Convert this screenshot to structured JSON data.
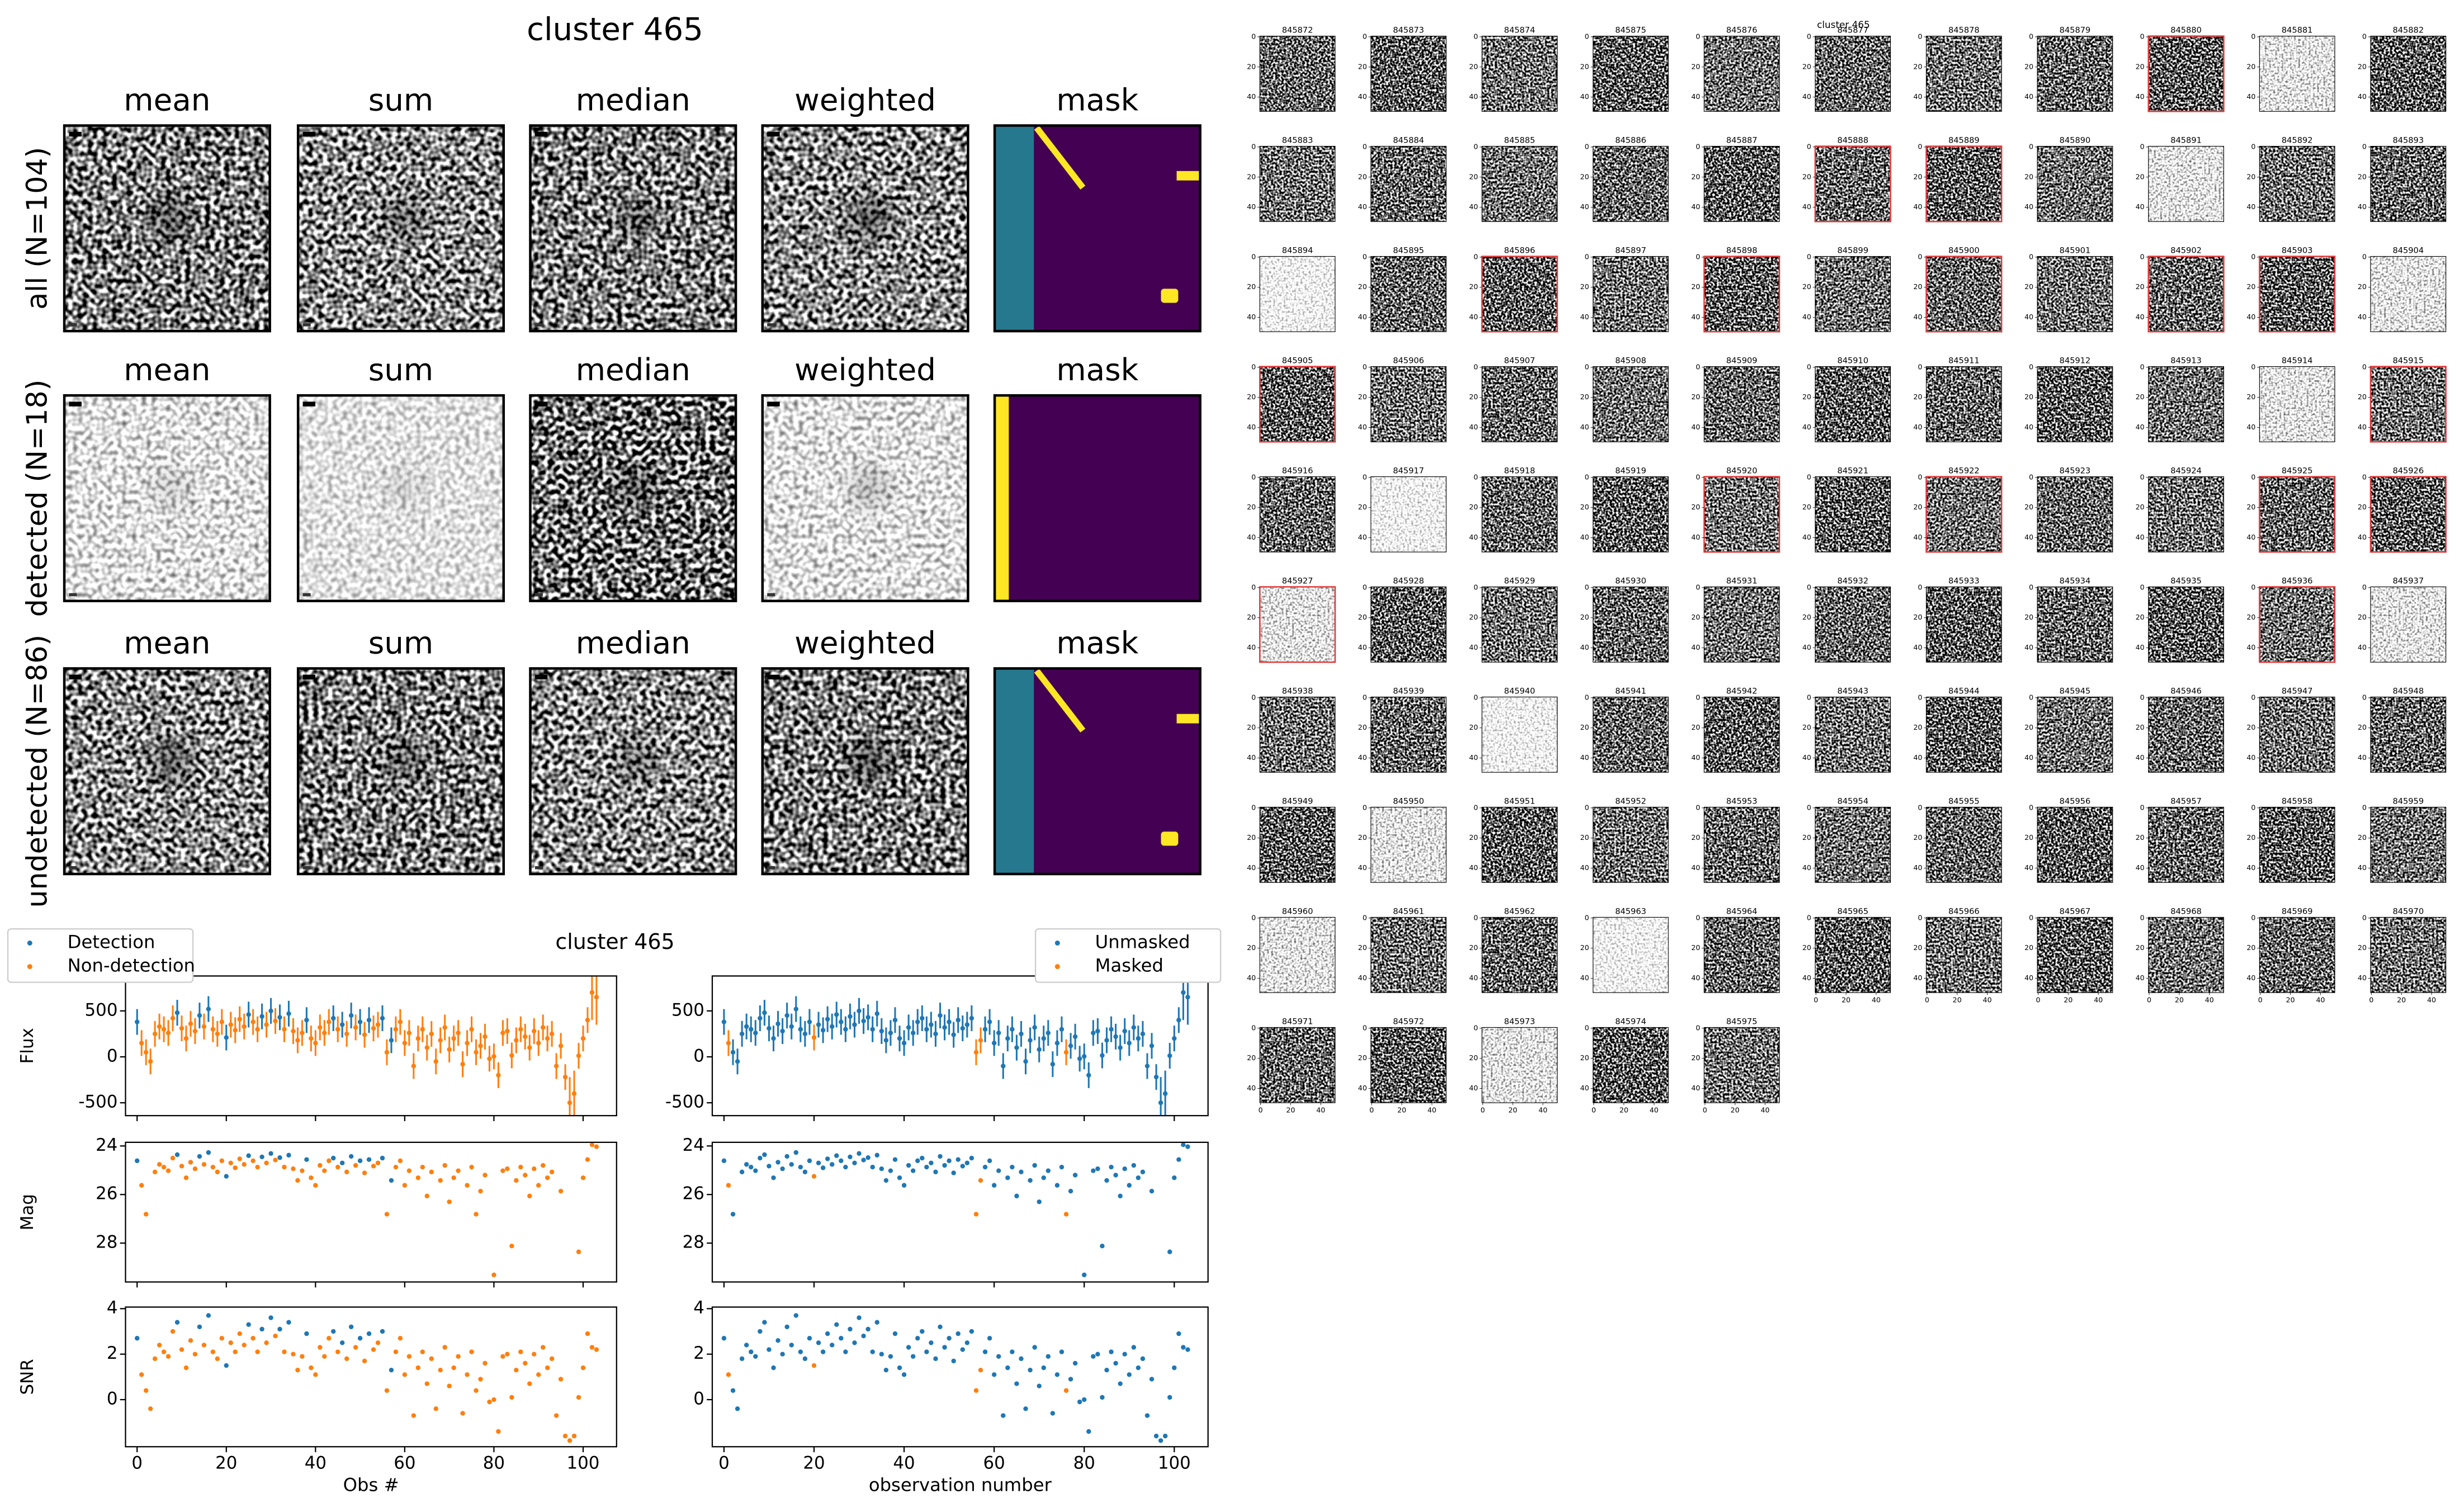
{
  "image_grid": {
    "title": "cluster 465",
    "rows": [
      {
        "label": "all (N=104)",
        "columns": [
          "mean",
          "sum",
          "median",
          "weighted",
          "mask"
        ]
      },
      {
        "label": "detected (N=18)",
        "columns": [
          "mean",
          "sum",
          "median",
          "weighted",
          "mask"
        ]
      },
      {
        "label": "undetected (N=86)",
        "columns": [
          "mean",
          "sum",
          "median",
          "weighted",
          "mask"
        ]
      }
    ]
  },
  "chart_data": {
    "type": "scatter",
    "title": "cluster 465",
    "x": [
      0,
      1,
      2,
      3,
      4,
      5,
      6,
      7,
      8,
      9,
      10,
      11,
      12,
      13,
      14,
      15,
      16,
      17,
      18,
      19,
      20,
      21,
      22,
      23,
      24,
      25,
      26,
      27,
      28,
      29,
      30,
      31,
      32,
      33,
      34,
      35,
      36,
      37,
      38,
      39,
      40,
      41,
      42,
      43,
      44,
      45,
      46,
      47,
      48,
      49,
      50,
      51,
      52,
      53,
      54,
      55,
      56,
      57,
      58,
      59,
      60,
      61,
      62,
      63,
      64,
      65,
      66,
      67,
      68,
      69,
      70,
      71,
      72,
      73,
      74,
      75,
      76,
      77,
      78,
      79,
      80,
      81,
      82,
      83,
      84,
      85,
      86,
      87,
      88,
      89,
      90,
      91,
      92,
      93,
      94,
      95,
      96,
      97,
      98,
      99,
      100,
      101,
      102,
      103
    ],
    "xlim": [
      -2.6,
      107.5
    ],
    "xticks": [
      0,
      20,
      40,
      60,
      80,
      100
    ],
    "rows": [
      {
        "ylabel": "Flux",
        "ylim": [
          -640,
          880
        ],
        "yticks": [
          -500,
          0,
          500
        ],
        "values": [
          380,
          150,
          50,
          -50,
          250,
          330,
          300,
          260,
          420,
          480,
          310,
          200,
          360,
          280,
          450,
          330,
          520,
          300,
          250,
          380,
          210,
          350,
          290,
          410,
          330,
          460,
          380,
          300,
          440,
          350,
          500,
          390,
          430,
          300,
          470,
          280,
          180,
          260,
          400,
          200,
          150,
          320,
          260,
          380,
          420,
          300,
          350,
          250,
          450,
          320,
          380,
          240,
          400,
          310,
          350,
          420,
          50,
          180,
          300,
          380,
          150,
          260,
          -100,
          200,
          300,
          100,
          250,
          -50,
          180,
          320,
          80,
          200,
          260,
          -80,
          150,
          300,
          50,
          120,
          220,
          -20,
          5,
          -200,
          260,
          280,
          15,
          180,
          300,
          220,
          100,
          280,
          150,
          320,
          200,
          250,
          -100,
          120,
          -220,
          -500,
          -400,
          12,
          200,
          400,
          700,
          650
        ],
        "errors": [
          140,
          140,
          140,
          140,
          140,
          140,
          140,
          140,
          140,
          140,
          140,
          140,
          140,
          140,
          140,
          140,
          140,
          140,
          140,
          140,
          140,
          140,
          140,
          140,
          140,
          140,
          140,
          140,
          140,
          140,
          140,
          140,
          140,
          140,
          140,
          140,
          140,
          140,
          140,
          140,
          140,
          140,
          140,
          140,
          140,
          140,
          140,
          140,
          140,
          140,
          140,
          140,
          140,
          140,
          140,
          140,
          140,
          140,
          140,
          140,
          140,
          140,
          140,
          140,
          140,
          140,
          140,
          140,
          140,
          140,
          140,
          140,
          140,
          140,
          140,
          140,
          140,
          140,
          140,
          140,
          140,
          140,
          140,
          140,
          140,
          140,
          140,
          140,
          140,
          140,
          140,
          140,
          140,
          140,
          140,
          140,
          140,
          280,
          250,
          140,
          140,
          140,
          300,
          300
        ]
      },
      {
        "ylabel": "Mag",
        "ylim": [
          29.6,
          23.85
        ],
        "yticks": [
          24,
          26,
          28
        ],
        "values": [
          24.61,
          25.62,
          26.81,
          null,
          25.07,
          24.76,
          24.87,
          25.02,
          24.5,
          24.36,
          24.83,
          25.31,
          24.67,
          24.94,
          24.43,
          24.76,
          24.27,
          24.87,
          25.07,
          24.61,
          25.25,
          24.7,
          24.9,
          24.53,
          24.76,
          24.4,
          24.61,
          24.87,
          24.45,
          24.7,
          24.31,
          24.58,
          24.48,
          24.87,
          24.38,
          24.94,
          25.42,
          25.02,
          24.56,
          25.31,
          25.62,
          24.8,
          25.02,
          24.61,
          24.5,
          24.87,
          24.7,
          25.07,
          24.43,
          24.8,
          24.61,
          25.11,
          24.56,
          24.83,
          24.7,
          24.5,
          26.81,
          25.42,
          24.87,
          24.61,
          25.62,
          25.02,
          null,
          25.31,
          24.87,
          26.06,
          25.07,
          null,
          25.42,
          24.8,
          26.3,
          25.31,
          25.02,
          null,
          25.62,
          24.87,
          26.81,
          25.86,
          25.2,
          null,
          29.31,
          null,
          25.02,
          24.94,
          28.12,
          25.42,
          24.87,
          25.2,
          26.06,
          24.94,
          25.62,
          24.8,
          25.31,
          25.07,
          null,
          25.86,
          null,
          null,
          null,
          28.36,
          25.31,
          24.56,
          23.95,
          24.03
        ]
      },
      {
        "ylabel": "SNR",
        "ylim": [
          -2.07,
          4.07
        ],
        "yticks": [
          0,
          2,
          4
        ],
        "values": [
          2.7,
          1.1,
          0.4,
          -0.4,
          1.8,
          2.4,
          2.1,
          1.9,
          3.0,
          3.4,
          2.2,
          1.4,
          2.6,
          2.0,
          3.2,
          2.4,
          3.7,
          2.1,
          1.8,
          2.7,
          1.5,
          2.5,
          2.1,
          2.9,
          2.4,
          3.3,
          2.7,
          2.1,
          3.1,
          2.5,
          3.6,
          2.8,
          3.1,
          2.1,
          3.4,
          2.0,
          1.3,
          1.9,
          2.9,
          1.4,
          1.1,
          2.3,
          1.9,
          2.7,
          3.0,
          2.1,
          2.5,
          1.8,
          3.2,
          2.3,
          2.7,
          1.7,
          2.9,
          2.2,
          2.5,
          3.0,
          0.4,
          1.3,
          2.1,
          2.7,
          1.1,
          1.9,
          -0.7,
          1.4,
          2.1,
          0.7,
          1.8,
          -0.4,
          1.3,
          2.3,
          0.6,
          1.4,
          1.9,
          -0.6,
          1.1,
          2.1,
          0.4,
          0.9,
          1.6,
          -0.1,
          0.0,
          -1.4,
          1.9,
          2.0,
          0.1,
          1.3,
          2.1,
          1.6,
          0.7,
          2.0,
          1.1,
          2.3,
          1.4,
          1.8,
          -0.7,
          0.9,
          -1.6,
          -1.8,
          -1.6,
          0.1,
          1.4,
          2.9,
          2.3,
          2.2
        ]
      }
    ],
    "panels": [
      {
        "xlabel": "Obs #",
        "legend": "upper left",
        "series": [
          {
            "name": "Non-detection",
            "color": "#ff7f0e",
            "x": [
              1,
              2,
              3,
              4,
              5,
              6,
              7,
              8,
              10,
              11,
              12,
              13,
              15,
              17,
              18,
              19,
              21,
              22,
              23,
              24,
              26,
              27,
              29,
              31,
              33,
              35,
              36,
              37,
              39,
              40,
              41,
              42,
              43,
              45,
              47,
              49,
              51,
              53,
              54,
              56,
              58,
              59,
              60,
              61,
              62,
              63,
              64,
              65,
              66,
              67,
              68,
              69,
              70,
              71,
              72,
              73,
              74,
              75,
              76,
              77,
              78,
              79,
              80,
              81,
              82,
              83,
              84,
              85,
              86,
              87,
              88,
              89,
              90,
              91,
              92,
              93,
              94,
              95,
              96,
              97,
              98,
              99,
              100,
              101,
              102,
              103
            ]
          },
          {
            "name": "Detection",
            "color": "#1f77b4",
            "x": [
              0,
              9,
              14,
              16,
              20,
              25,
              28,
              30,
              32,
              34,
              38,
              44,
              46,
              48,
              50,
              52,
              55,
              57
            ]
          }
        ]
      },
      {
        "xlabel": "observation number",
        "legend": "upper right",
        "series": [
          {
            "name": "Unmasked",
            "color": "#1f77b4",
            "x": [
              0,
              2,
              3,
              4,
              5,
              6,
              7,
              8,
              9,
              10,
              11,
              12,
              13,
              14,
              15,
              16,
              17,
              18,
              19,
              21,
              22,
              23,
              24,
              25,
              26,
              27,
              28,
              29,
              30,
              31,
              32,
              33,
              34,
              35,
              36,
              37,
              38,
              39,
              40,
              41,
              42,
              43,
              44,
              45,
              46,
              47,
              48,
              49,
              50,
              51,
              52,
              53,
              54,
              55,
              58,
              59,
              60,
              61,
              62,
              63,
              64,
              65,
              66,
              67,
              68,
              69,
              70,
              71,
              72,
              73,
              74,
              75,
              77,
              78,
              79,
              80,
              81,
              82,
              83,
              84,
              85,
              86,
              87,
              88,
              89,
              90,
              91,
              92,
              93,
              94,
              95,
              96,
              97,
              98,
              99,
              100,
              101,
              102,
              103
            ]
          },
          {
            "name": "Masked",
            "color": "#ff7f0e",
            "x": [
              1,
              20,
              56,
              57,
              76
            ]
          }
        ]
      }
    ]
  },
  "thumbnails": {
    "title": "cluster 465",
    "ticks": [
      0,
      20,
      40
    ],
    "lim": [
      -0.5,
      49.5
    ],
    "outline_color": "#e03c3c",
    "ids": [
      "845872",
      "845873",
      "845874",
      "845875",
      "845876",
      "845877",
      "845878",
      "845879",
      "845880",
      "845881",
      "845882",
      "845883",
      "845884",
      "845885",
      "845886",
      "845887",
      "845888",
      "845889",
      "845890",
      "845891",
      "845892",
      "845893",
      "845894",
      "845895",
      "845896",
      "845897",
      "845898",
      "845899",
      "845900",
      "845901",
      "845902",
      "845903",
      "845904",
      "845905",
      "845906",
      "845907",
      "845908",
      "845909",
      "845910",
      "845911",
      "845912",
      "845913",
      "845914",
      "845915",
      "845916",
      "845917",
      "845918",
      "845919",
      "845920",
      "845921",
      "845922",
      "845923",
      "845924",
      "845925",
      "845926",
      "845927",
      "845928",
      "845929",
      "845930",
      "845931",
      "845932",
      "845933",
      "845934",
      "845935",
      "845936",
      "845937",
      "845938",
      "845939",
      "845940",
      "845941",
      "845942",
      "845943",
      "845944",
      "845945",
      "845946",
      "845947",
      "845948",
      "845949",
      "845950",
      "845951",
      "845952",
      "845953",
      "845954",
      "845955",
      "845956",
      "845957",
      "845958",
      "845959",
      "845960",
      "845961",
      "845962",
      "845963",
      "845964",
      "845965",
      "845966",
      "845967",
      "845968",
      "845969",
      "845970",
      "845971",
      "845972",
      "845973",
      "845974",
      "845975"
    ],
    "outlined": [
      "845880",
      "845888",
      "845889",
      "845896",
      "845898",
      "845900",
      "845902",
      "845903",
      "845905",
      "845915",
      "845920",
      "845922",
      "845925",
      "845926",
      "845927",
      "845936"
    ]
  }
}
